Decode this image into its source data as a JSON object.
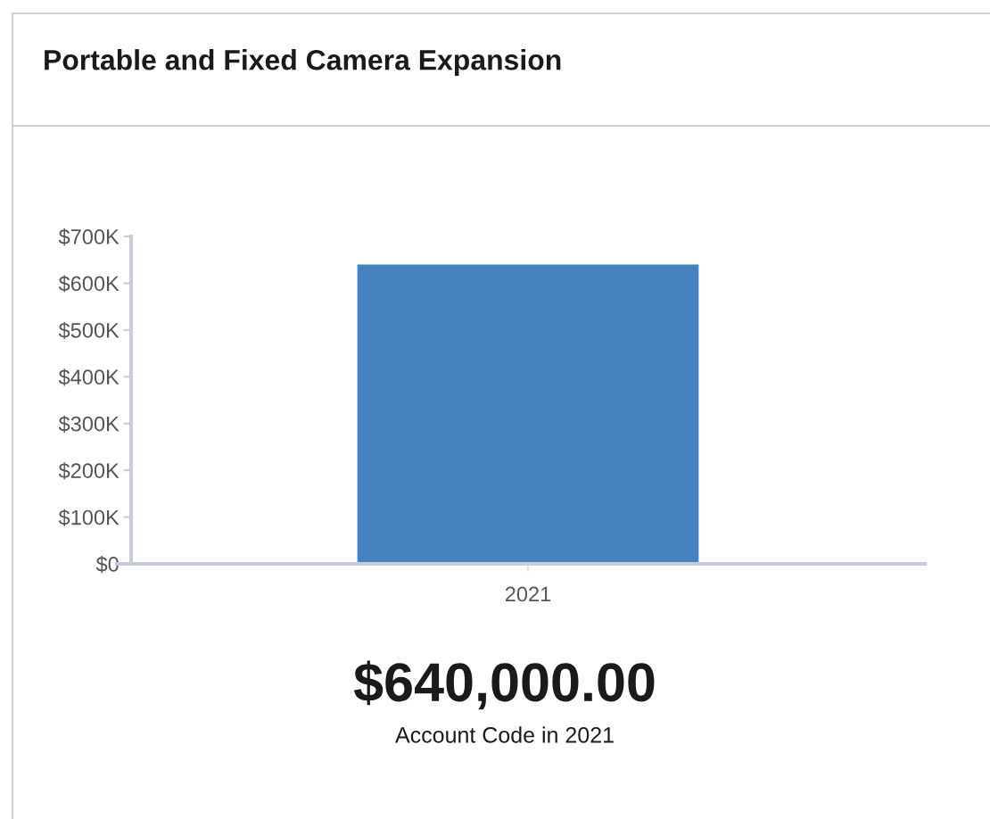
{
  "chart_data": {
    "type": "bar",
    "title": "Portable and Fixed Camera Expansion",
    "categories": [
      "2021"
    ],
    "series": [
      {
        "color": "#4682c0",
        "values": [
          640000
        ]
      }
    ],
    "ylim": [
      0,
      700000
    ],
    "yticks": [
      {
        "value": 0,
        "label": "$0"
      },
      {
        "value": 100000,
        "label": "$100K"
      },
      {
        "value": 200000,
        "label": "$200K"
      },
      {
        "value": 300000,
        "label": "$300K"
      },
      {
        "value": 400000,
        "label": "$400K"
      },
      {
        "value": 500000,
        "label": "$500K"
      },
      {
        "value": 600000,
        "label": "$600K"
      },
      {
        "value": 700000,
        "label": "$700K"
      }
    ],
    "grid": false,
    "legend": false,
    "annotations": [
      "$640,000.00",
      "Account Code in 2021"
    ]
  }
}
